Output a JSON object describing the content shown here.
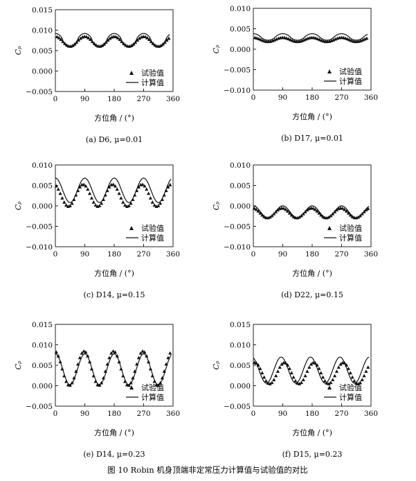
{
  "figure_caption": "图 10    Robin 机身顶端非定常压力计算值与试验值的对比",
  "legend": {
    "exp": "试验值",
    "calc": "计算值"
  },
  "chart_data": [
    {
      "type": "line",
      "caption": "(a) D6, μ=0.01",
      "ylabel": "Cₚ",
      "xlabel": "方位角 / (°)",
      "xlim": [
        0,
        360
      ],
      "ylim": [
        -0.005,
        0.015
      ],
      "xticks": [
        "0",
        "90",
        "180",
        "270",
        "360"
      ],
      "yticks": [
        "−0.005",
        "0.000",
        "0.005",
        "0.010",
        "0.015"
      ],
      "series": [
        {
          "name": "计算值",
          "kind": "line",
          "mean": 0.0075,
          "amp": 0.0017,
          "phase": 90,
          "sharp": 1.6,
          "start": 0,
          "end": 350
        },
        {
          "name": "试验值",
          "kind": "markers",
          "mean": 0.0072,
          "amp": 0.0012,
          "phase": 90,
          "sharp": 1.0,
          "start": 5,
          "end": 350
        }
      ]
    },
    {
      "type": "line",
      "caption": "(b) D17, μ=0.01",
      "ylabel": "Cₚ",
      "xlabel": "方位角 / (°)",
      "xlim": [
        0,
        360
      ],
      "ylim": [
        -0.01,
        0.01
      ],
      "xticks": [
        "0",
        "90",
        "180",
        "270",
        "360"
      ],
      "yticks": [
        "−0.010",
        "−0.005",
        "0.000",
        "0.005",
        "0.010"
      ],
      "series": [
        {
          "name": "计算值",
          "kind": "line",
          "mean": 0.003,
          "amp": 0.0008,
          "phase": 90,
          "sharp": 1.2,
          "start": 0,
          "end": 350
        },
        {
          "name": "试验值",
          "kind": "markers",
          "mean": 0.0023,
          "amp": 0.0005,
          "phase": 90,
          "sharp": 1.0,
          "start": 5,
          "end": 350
        }
      ]
    },
    {
      "type": "line",
      "caption": "(c) D14, μ=0.15",
      "ylabel": "Cₚ",
      "xlabel": "方位角 / (°)",
      "xlim": [
        0,
        360
      ],
      "ylim": [
        -0.01,
        0.01
      ],
      "xticks": [
        "0",
        "90",
        "180",
        "270",
        "360"
      ],
      "yticks": [
        "−0.010",
        "−0.005",
        "0.000",
        "0.005",
        "0.010"
      ],
      "series": [
        {
          "name": "计算值",
          "kind": "line",
          "mean": 0.0038,
          "amp": 0.003,
          "phase": 90,
          "sharp": 1.0,
          "start": 0,
          "end": 355
        },
        {
          "name": "试验值",
          "kind": "markers",
          "mean": 0.0025,
          "amp": 0.0027,
          "phase": 85,
          "sharp": 1.0,
          "start": 3,
          "end": 355
        }
      ]
    },
    {
      "type": "line",
      "caption": "(d) D22, μ=0.15",
      "ylabel": "Cₚ",
      "xlabel": "方位角 / (°)",
      "xlim": [
        0,
        360
      ],
      "ylim": [
        -0.01,
        0.01
      ],
      "xticks": [
        "0",
        "90",
        "180",
        "270",
        "360"
      ],
      "yticks": [
        "−0.010",
        "−0.005",
        "0.000",
        "0.005",
        "0.010"
      ],
      "series": [
        {
          "name": "计算值",
          "kind": "line",
          "mean": -0.0015,
          "amp": 0.0015,
          "phase": 90,
          "sharp": 1.0,
          "start": 0,
          "end": 355
        },
        {
          "name": "试验值",
          "kind": "markers",
          "mean": -0.0018,
          "amp": 0.0012,
          "phase": 88,
          "sharp": 1.0,
          "start": 3,
          "end": 355
        }
      ]
    },
    {
      "type": "line",
      "caption": "(e) D14, μ=0.23",
      "ylabel": "Cₚ",
      "xlabel": "方位角 / (°)",
      "xlim": [
        0,
        360
      ],
      "ylim": [
        -0.005,
        0.015
      ],
      "xticks": [
        "0",
        "90",
        "180",
        "270",
        "360"
      ],
      "yticks": [
        "−0.005",
        "0.000",
        "0.005",
        "0.010",
        "0.015"
      ],
      "series": [
        {
          "name": "计算值",
          "kind": "line",
          "mean": 0.004,
          "amp": 0.0038,
          "phase": 90,
          "sharp": 1.0,
          "start": 0,
          "end": 355
        },
        {
          "name": "试验值",
          "kind": "markers",
          "mean": 0.0042,
          "amp": 0.0042,
          "phase": 88,
          "sharp": 1.0,
          "start": 3,
          "end": 355
        }
      ]
    },
    {
      "type": "line",
      "caption": "(f) D15, μ=0.23",
      "ylabel": "Cₚ",
      "xlabel": "方位角 / (°)",
      "xlim": [
        0,
        360
      ],
      "ylim": [
        -0.005,
        0.015
      ],
      "xticks": [
        "0",
        "90",
        "180",
        "270",
        "360"
      ],
      "yticks": [
        "−0.005",
        "0.000",
        "0.005",
        "0.010",
        "0.015"
      ],
      "series": [
        {
          "name": "计算值",
          "kind": "line",
          "mean": 0.0038,
          "amp": 0.0032,
          "phase": 85,
          "sharp": 1.0,
          "start": 0,
          "end": 355
        },
        {
          "name": "试验值",
          "kind": "markers",
          "mean": 0.003,
          "amp": 0.0026,
          "phase": 95,
          "sharp": 1.0,
          "start": 3,
          "end": 355
        }
      ]
    }
  ]
}
